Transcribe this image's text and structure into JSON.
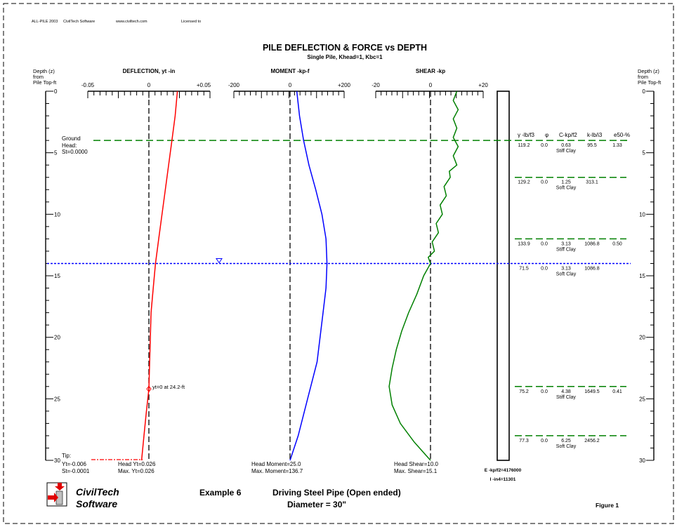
{
  "header": {
    "app": "ALL-PILE 2003",
    "company": "CivilTech Software",
    "url": "www.civiltech.com",
    "licensed": "Licensed to"
  },
  "title": "PILE DEFLECTION & FORCE vs DEPTH",
  "subtitle": "Single Pile, Khead=1, Kbc=1",
  "depth_axis": {
    "label_lines": [
      "Depth (z)",
      "from",
      "Pile Top-ft"
    ],
    "ticks": [
      "0",
      "5",
      "10",
      "15",
      "20",
      "25",
      "30"
    ]
  },
  "ground": {
    "label": "Ground",
    "head_label": "Head:",
    "st_value": "St=0.0000"
  },
  "tip": {
    "label": "Tip:",
    "yt": "Yt=-0.006",
    "st": "St=-0.0001"
  },
  "zero_point_note": "yt=0 at 24.2-ft",
  "panels": {
    "deflection": {
      "title": "DEFLECTION, yt -in",
      "ticks": [
        "-0.05",
        "0",
        "+0.05"
      ],
      "head": "Head Yt=0.026",
      "max": "Max. Yt=0.026"
    },
    "moment": {
      "title": "MOMENT -kp-f",
      "ticks": [
        "-200",
        "0",
        "+200"
      ],
      "head": "Head Moment=25.0",
      "max": "Max.  Moment=136.7"
    },
    "shear": {
      "title": "SHEAR -kp",
      "ticks": [
        "-20",
        "0",
        "+20"
      ],
      "head": "Head Shear=10.0",
      "max": "Max.  Shear=15.1"
    }
  },
  "pile": {
    "E": "E -kp/f2=4176000",
    "I": "I -in4=11301"
  },
  "soil_header": {
    "gamma": "γ -lb/f3",
    "phi": "φ",
    "c": "C-kp/f2",
    "k": "k-lb/i3",
    "e50": "e50-%"
  },
  "soil_layers": [
    {
      "top": 4,
      "gamma": "119.2",
      "phi": "0.0",
      "c": "0.63",
      "k": "95.5",
      "e50": "1.33",
      "type": "Stiff Clay"
    },
    {
      "top": 7,
      "gamma": "129.2",
      "phi": "0.0",
      "c": "1.25",
      "k": "313.1",
      "e50": "",
      "type": "Soft Clay"
    },
    {
      "top": 12,
      "gamma": "133.9",
      "phi": "0.0",
      "c": "3.13",
      "k": "1086.8",
      "e50": "0.50",
      "type": "Stiff Clay"
    },
    {
      "top": 14,
      "gamma": "71.5",
      "phi": "0.0",
      "c": "3.13",
      "k": "1086.8",
      "e50": "",
      "type": "Soft Clay"
    },
    {
      "top": 24,
      "gamma": "75.2",
      "phi": "0.0",
      "c": "4.38",
      "k": "1649.5",
      "e50": "0.41",
      "type": "Stiff Clay"
    },
    {
      "top": 28,
      "gamma": "77.3",
      "phi": "0.0",
      "c": "6.25",
      "k": "2456.2",
      "e50": "",
      "type": "Soft Clay"
    }
  ],
  "footer": {
    "logo_line1": "CivilTech",
    "logo_line2": "Software",
    "example": "Example 6",
    "desc1": "Driving Steel Pipe (Open ended)",
    "desc2": "Diameter = 30\"",
    "figure": "Figure 1"
  },
  "colors": {
    "deflection": "#ff0000",
    "moment": "#0000ff",
    "shear": "#008000",
    "ground": "#008000",
    "water": "#0000ff"
  },
  "chart_data": [
    {
      "type": "line",
      "series": [
        {
          "name": "DEFLECTION, yt -in",
          "x": [
            0.026,
            0.024,
            0.021,
            0.018,
            0.015,
            0.012,
            0.009,
            0.006,
            0.004,
            0.002,
            0.0,
            -0.002,
            -0.004,
            -0.006
          ],
          "y": [
            0,
            2,
            4,
            6,
            8,
            10,
            12,
            14,
            16,
            18,
            24.2,
            26,
            28,
            30
          ]
        }
      ],
      "xlim": [
        -0.05,
        0.05
      ],
      "ylim": [
        0,
        30
      ],
      "y_inverted": true
    },
    {
      "type": "line",
      "series": [
        {
          "name": "MOMENT -kp-f",
          "x": [
            25.0,
            35,
            50,
            70,
            95,
            118,
            133,
            136.7,
            133,
            122,
            100,
            65,
            30,
            0
          ],
          "y": [
            0,
            2,
            4,
            6,
            8,
            10,
            12,
            14,
            16,
            18,
            22,
            25,
            28,
            30
          ]
        }
      ],
      "xlim": [
        -200,
        200
      ],
      "ylim": [
        0,
        30
      ],
      "y_inverted": true
    },
    {
      "type": "line",
      "series": [
        {
          "name": "SHEAR -kp",
          "x": [
            10.0,
            10.5,
            10.0,
            10.5,
            10.0,
            7.5,
            6.0,
            4.5,
            3.0,
            1.5,
            0.0,
            -2.5,
            -5.0,
            -8.0,
            -10.5,
            -12.5,
            -14.0,
            -15.1,
            -14.0,
            -11.0,
            -6.0,
            -2.0,
            0.0
          ],
          "y": [
            0,
            1.5,
            3,
            4.5,
            6,
            7,
            8.5,
            10,
            11.5,
            13,
            14,
            15,
            16.5,
            18,
            19.5,
            21,
            22.5,
            24,
            25.5,
            27,
            28.5,
            29.5,
            30
          ]
        }
      ],
      "xlim": [
        -20,
        20
      ],
      "ylim": [
        0,
        30
      ],
      "y_inverted": true
    }
  ]
}
